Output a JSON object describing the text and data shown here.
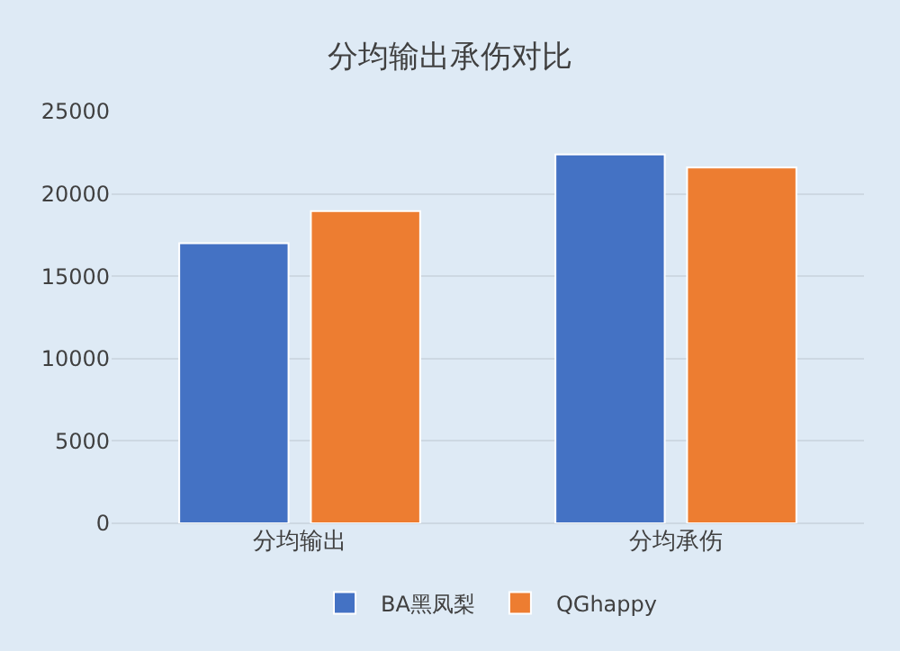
{
  "chart_data": {
    "type": "bar",
    "title": "分均输出承伤对比",
    "categories": [
      "分均输出",
      "分均承伤"
    ],
    "series": [
      {
        "name": "BA黑凤梨",
        "color": "#4472c4",
        "values": [
          17000,
          22400
        ]
      },
      {
        "name": "QGhappy",
        "color": "#ed7d31",
        "values": [
          18950,
          21600
        ]
      }
    ],
    "ylim": [
      0,
      25000
    ],
    "yticks": [
      0,
      5000,
      10000,
      15000,
      20000,
      25000
    ],
    "grid": "y",
    "legend": "bottom"
  }
}
